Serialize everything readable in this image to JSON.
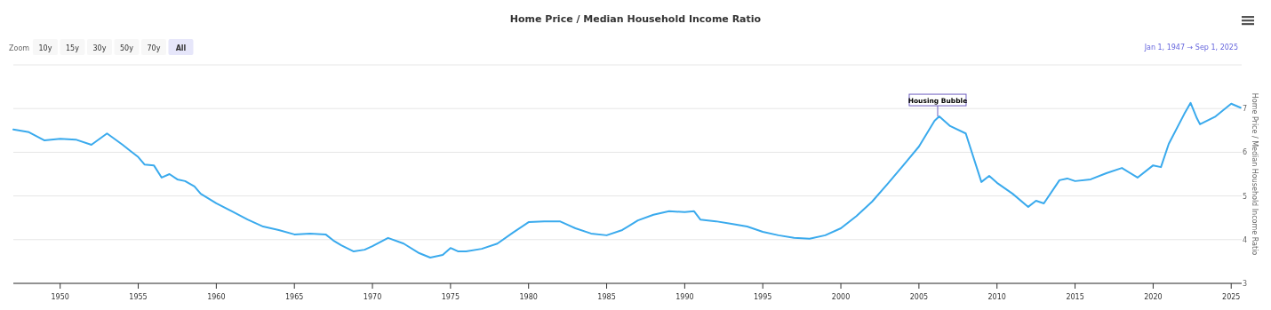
{
  "chart_data": {
    "type": "line",
    "title": "Home Price / Median Household Income Ratio",
    "ylabel": "Home Price / Median Household Income Ratio",
    "x": [
      1947,
      1948,
      1949,
      1950,
      1951,
      1952,
      1953,
      1954,
      1954.5,
      1955,
      1955.4,
      1956,
      1956.5,
      1957,
      1957.5,
      1958,
      1958.6,
      1959,
      1960,
      1961,
      1962,
      1963,
      1964,
      1965,
      1966,
      1967,
      1967.5,
      1968,
      1968.8,
      1969.5,
      1970,
      1971,
      1972,
      1973,
      1973.7,
      1974.5,
      1975,
      1975.5,
      1976,
      1977,
      1978,
      1979,
      1980,
      1981,
      1982,
      1983,
      1984,
      1985,
      1986,
      1987,
      1988,
      1989,
      1990,
      1990.6,
      1991,
      1992,
      1993,
      1994,
      1995,
      1996,
      1997,
      1998,
      1999,
      2000,
      2001,
      2002,
      2003,
      2004,
      2005,
      2006,
      2006.3,
      2007,
      2008,
      2009,
      2009.5,
      2010,
      2011,
      2012,
      2012.5,
      2013,
      2014,
      2014.5,
      2015,
      2016,
      2017,
      2018,
      2019,
      2020,
      2020.5,
      2021,
      2022,
      2022.4,
      2022.8,
      2023,
      2024,
      2025,
      2025.6
    ],
    "series": [
      {
        "color": "#3aaaed",
        "values": [
          6.52,
          6.46,
          6.27,
          6.31,
          6.29,
          6.17,
          6.43,
          6.17,
          6.03,
          5.89,
          5.72,
          5.7,
          5.42,
          5.5,
          5.38,
          5.34,
          5.22,
          5.05,
          4.83,
          4.65,
          4.46,
          4.3,
          4.22,
          4.12,
          4.14,
          4.12,
          3.98,
          3.87,
          3.73,
          3.77,
          3.85,
          4.04,
          3.91,
          3.69,
          3.59,
          3.65,
          3.81,
          3.73,
          3.73,
          3.79,
          3.91,
          4.16,
          4.4,
          4.42,
          4.42,
          4.26,
          4.14,
          4.1,
          4.22,
          4.44,
          4.57,
          4.65,
          4.63,
          4.65,
          4.46,
          4.42,
          4.36,
          4.3,
          4.18,
          4.1,
          4.04,
          4.02,
          4.1,
          4.26,
          4.54,
          4.87,
          5.28,
          5.7,
          6.13,
          6.72,
          6.82,
          6.6,
          6.43,
          5.32,
          5.46,
          5.3,
          5.05,
          4.75,
          4.89,
          4.83,
          5.36,
          5.4,
          5.34,
          5.38,
          5.52,
          5.64,
          5.42,
          5.7,
          5.66,
          6.19,
          6.88,
          7.13,
          6.78,
          6.64,
          6.82,
          7.11,
          7.02
        ]
      }
    ],
    "xlim": [
      1947,
      2025.67
    ],
    "xticks": [
      1950,
      1955,
      1960,
      1965,
      1970,
      1975,
      1980,
      1985,
      1990,
      1995,
      2000,
      2005,
      2010,
      2015,
      2020,
      2025
    ],
    "ylim": [
      3,
      8
    ],
    "yticks": [
      3,
      4,
      5,
      6,
      7,
      {
        "value": 8,
        "label": null
      }
    ],
    "grid": "y",
    "marker": "none",
    "line_style": "solid",
    "annotations": [
      {
        "text": "Housing Bubble",
        "x": 2006.2,
        "y": 6.82
      },
      "Zoom",
      "10y",
      "15y",
      "30y",
      "50y",
      "70y",
      "All",
      "Jan 1, 1947",
      "→",
      "Sep 1, 2025"
    ]
  }
}
